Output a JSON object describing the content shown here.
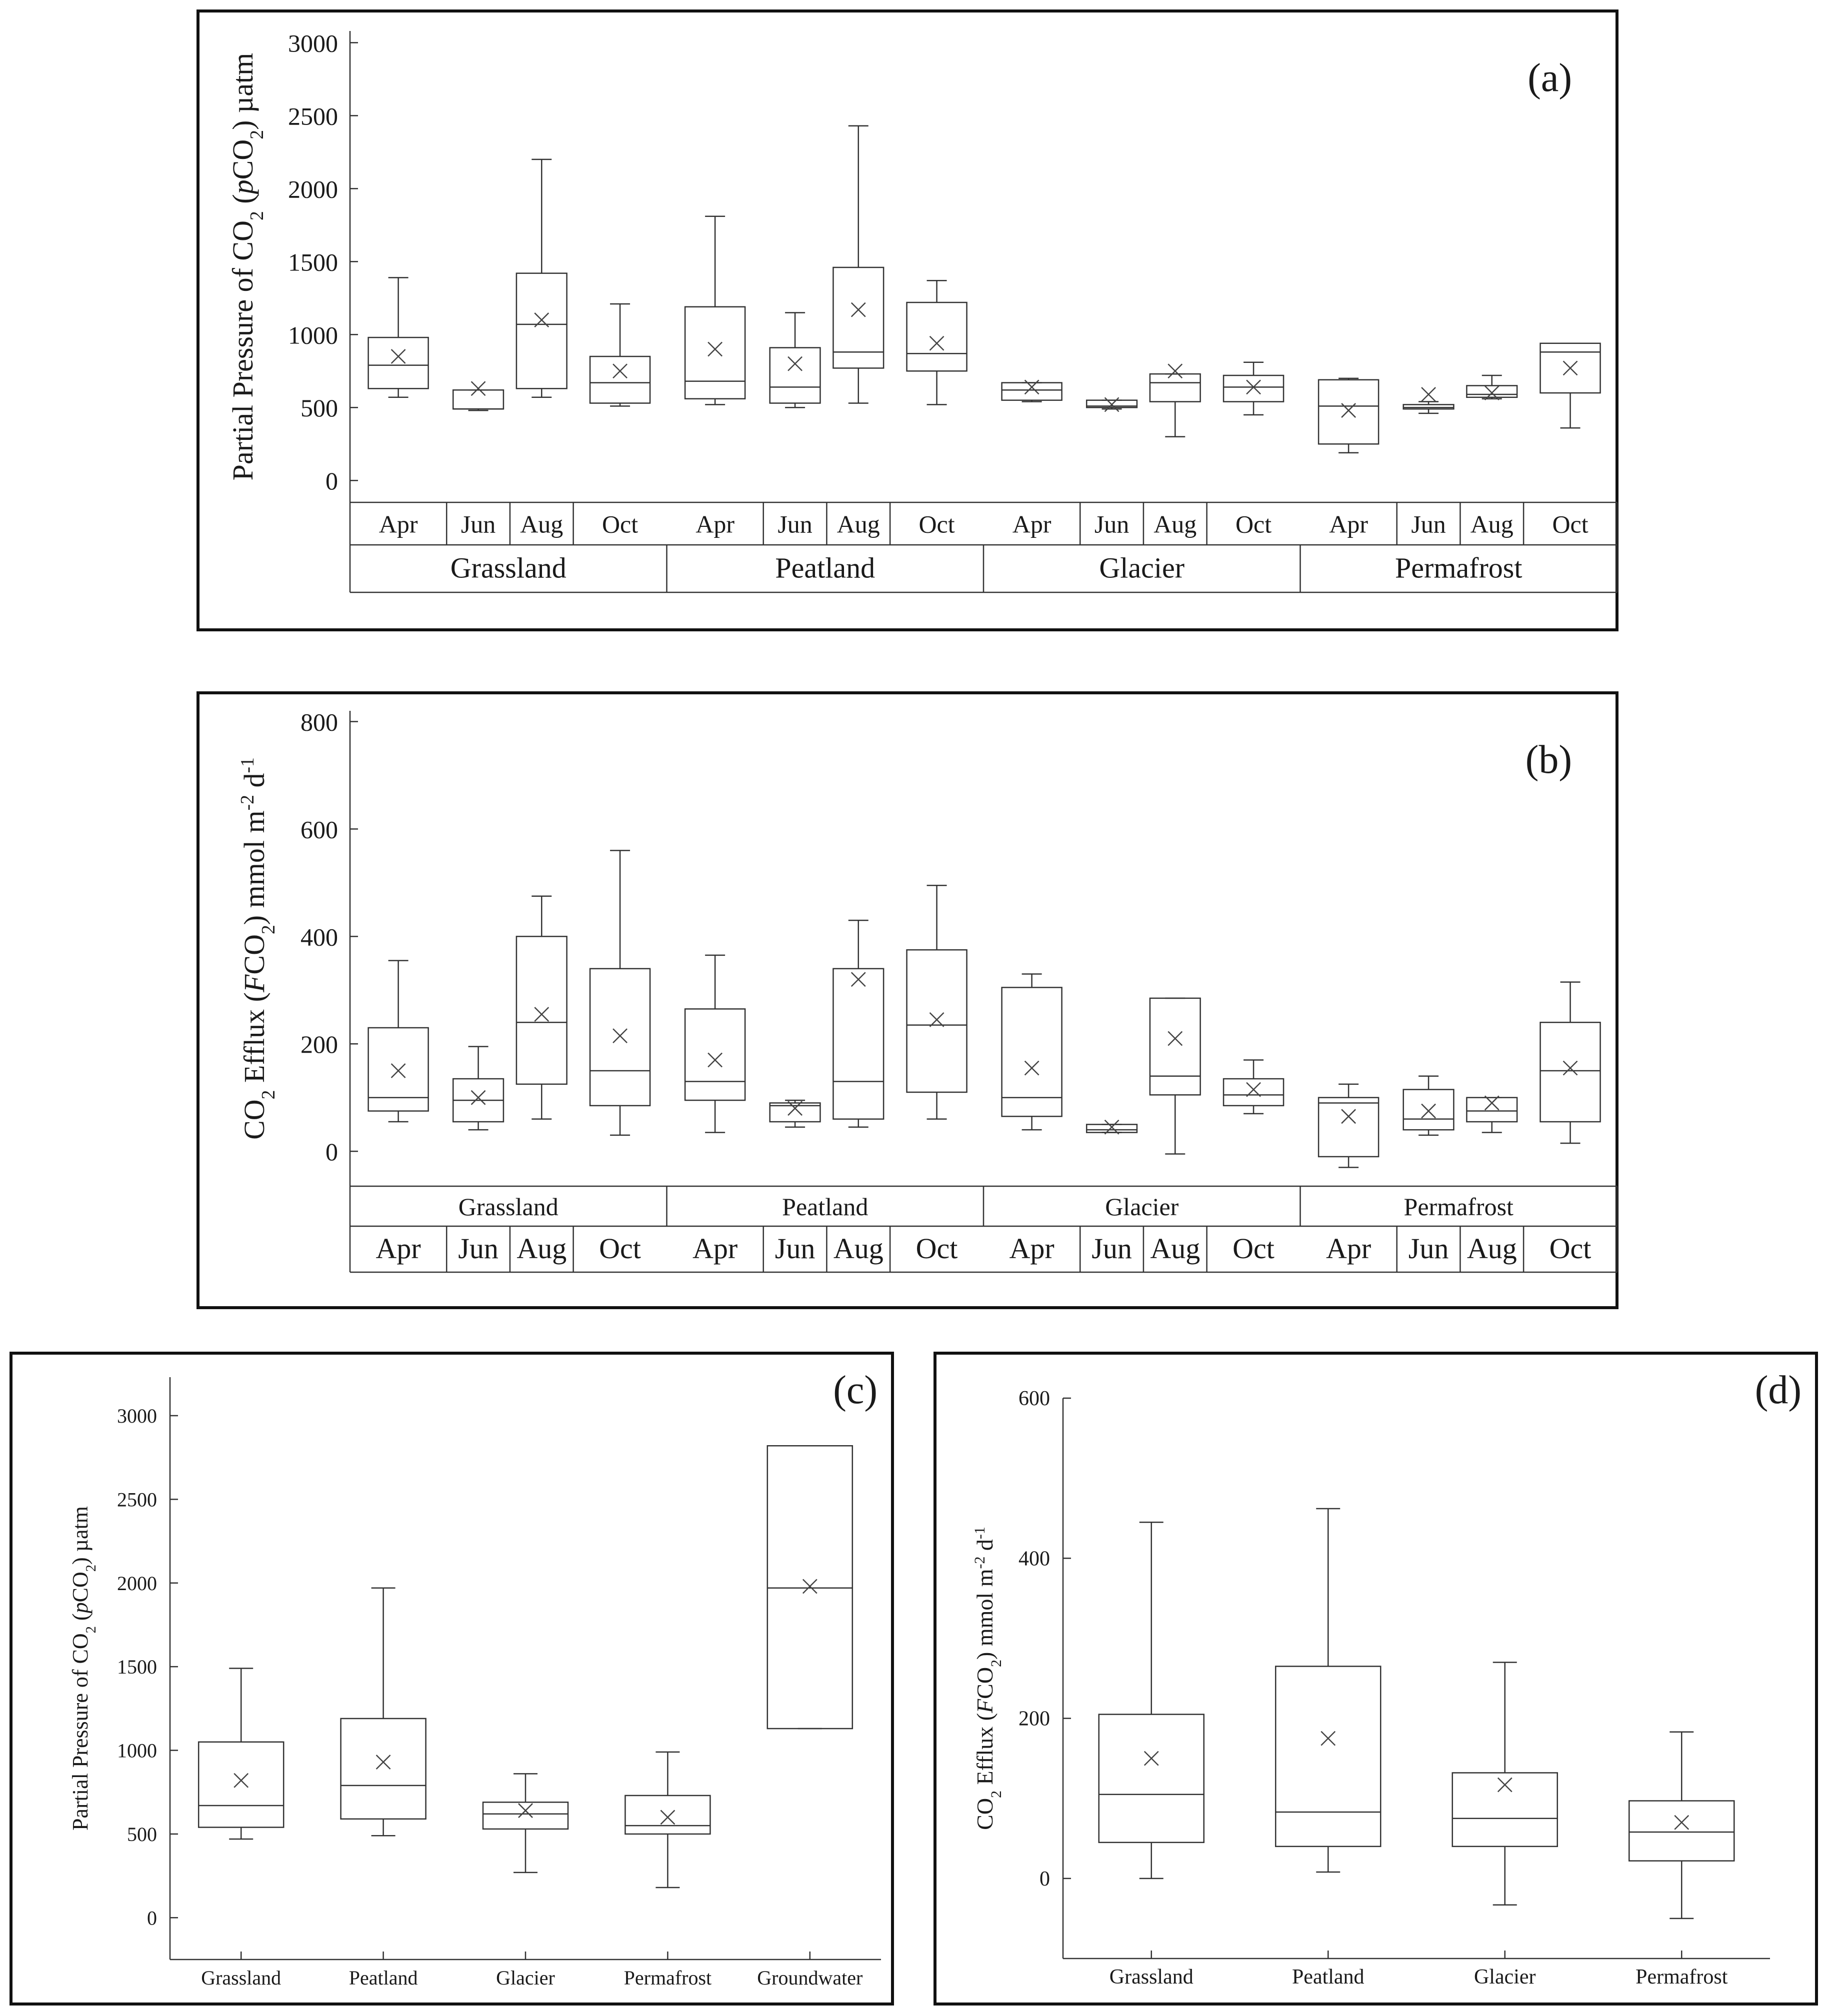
{
  "chart_data": [
    {
      "id": "a",
      "panel_label": "(a)",
      "type": "box",
      "ylabel_parts": [
        "Partial Pressure of CO",
        "2",
        " (",
        "p",
        "CO",
        "2",
        ") µatm"
      ],
      "yticks": [
        "0",
        "500",
        "1000",
        "1500",
        "2000",
        "2500",
        "3000"
      ],
      "ylim": [
        -150,
        3080
      ],
      "row1_is_month": true,
      "groups": [
        "Grassland",
        "Peatland",
        "Glacier",
        "Permafrost"
      ],
      "months": [
        "Apr",
        "Jun",
        "Aug",
        "Oct"
      ],
      "boxes": [
        {
          "group": "Grassland",
          "month": "Apr",
          "min": 570,
          "q1": 630,
          "median": 790,
          "q3": 980,
          "max": 1390,
          "mean": 850
        },
        {
          "group": "Grassland",
          "month": "Jun",
          "min": 480,
          "q1": 490,
          "median": 490,
          "q3": 620,
          "max": 620,
          "mean": 630
        },
        {
          "group": "Grassland",
          "month": "Aug",
          "min": 570,
          "q1": 630,
          "median": 1070,
          "q3": 1420,
          "max": 2200,
          "mean": 1100
        },
        {
          "group": "Grassland",
          "month": "Oct",
          "min": 510,
          "q1": 530,
          "median": 670,
          "q3": 850,
          "max": 1210,
          "mean": 750
        },
        {
          "group": "Peatland",
          "month": "Apr",
          "min": 520,
          "q1": 560,
          "median": 680,
          "q3": 1190,
          "max": 1810,
          "mean": 900
        },
        {
          "group": "Peatland",
          "month": "Jun",
          "min": 500,
          "q1": 530,
          "median": 640,
          "q3": 910,
          "max": 1150,
          "mean": 800
        },
        {
          "group": "Peatland",
          "month": "Aug",
          "min": 530,
          "q1": 770,
          "median": 880,
          "q3": 1460,
          "max": 2430,
          "mean": 1170
        },
        {
          "group": "Peatland",
          "month": "Oct",
          "min": 520,
          "q1": 750,
          "median": 870,
          "q3": 1220,
          "max": 1370,
          "mean": 940
        },
        {
          "group": "Glacier",
          "month": "Apr",
          "min": 540,
          "q1": 550,
          "median": 620,
          "q3": 670,
          "max": 670,
          "mean": 640
        },
        {
          "group": "Glacier",
          "month": "Jun",
          "min": 490,
          "q1": 500,
          "median": 510,
          "q3": 550,
          "max": 550,
          "mean": 520
        },
        {
          "group": "Glacier",
          "month": "Aug",
          "min": 300,
          "q1": 540,
          "median": 670,
          "q3": 730,
          "max": 730,
          "mean": 750
        },
        {
          "group": "Glacier",
          "month": "Oct",
          "min": 450,
          "q1": 540,
          "median": 640,
          "q3": 720,
          "max": 810,
          "mean": 640
        },
        {
          "group": "Permafrost",
          "month": "Apr",
          "min": 190,
          "q1": 250,
          "median": 510,
          "q3": 690,
          "max": 700,
          "mean": 480
        },
        {
          "group": "Permafrost",
          "month": "Jun",
          "min": 460,
          "q1": 490,
          "median": 500,
          "q3": 520,
          "max": 540,
          "mean": 590
        },
        {
          "group": "Permafrost",
          "month": "Aug",
          "min": 560,
          "q1": 570,
          "median": 590,
          "q3": 650,
          "max": 720,
          "mean": 600
        },
        {
          "group": "Permafrost",
          "month": "Oct",
          "min": 360,
          "q1": 600,
          "median": 880,
          "q3": 940,
          "max": 940,
          "mean": 770
        }
      ]
    },
    {
      "id": "b",
      "panel_label": "(b)",
      "type": "box",
      "ylabel_parts": [
        "CO",
        "2",
        " Efflux (",
        "F",
        "CO",
        "2",
        ") mmol m",
        "-2",
        " d",
        "-1"
      ],
      "yticks": [
        "0",
        "200",
        "400",
        "600",
        "800"
      ],
      "ylim": [
        -65,
        820
      ],
      "row1_is_month": false,
      "groups": [
        "Grassland",
        "Peatland",
        "Glacier",
        "Permafrost"
      ],
      "months": [
        "Apr",
        "Jun",
        "Aug",
        "Oct"
      ],
      "boxes": [
        {
          "group": "Grassland",
          "month": "Apr",
          "min": 55,
          "q1": 75,
          "median": 100,
          "q3": 230,
          "max": 355,
          "mean": 150
        },
        {
          "group": "Grassland",
          "month": "Jun",
          "min": 40,
          "q1": 55,
          "median": 95,
          "q3": 135,
          "max": 195,
          "mean": 100
        },
        {
          "group": "Grassland",
          "month": "Aug",
          "min": 60,
          "q1": 125,
          "median": 240,
          "q3": 400,
          "max": 475,
          "mean": 255
        },
        {
          "group": "Grassland",
          "month": "Oct",
          "min": 30,
          "q1": 85,
          "median": 150,
          "q3": 340,
          "max": 560,
          "mean": 215
        },
        {
          "group": "Peatland",
          "month": "Apr",
          "min": 35,
          "q1": 95,
          "median": 130,
          "q3": 265,
          "max": 365,
          "mean": 170
        },
        {
          "group": "Peatland",
          "month": "Jun",
          "min": 45,
          "q1": 55,
          "median": 85,
          "q3": 90,
          "max": 95,
          "mean": 80
        },
        {
          "group": "Peatland",
          "month": "Aug",
          "min": 45,
          "q1": 60,
          "median": 130,
          "q3": 340,
          "max": 430,
          "mean": 320
        },
        {
          "group": "Peatland",
          "month": "Oct",
          "min": 60,
          "q1": 110,
          "median": 235,
          "q3": 375,
          "max": 495,
          "mean": 245
        },
        {
          "group": "Glacier",
          "month": "Apr",
          "min": 40,
          "q1": 65,
          "median": 100,
          "q3": 305,
          "max": 330,
          "mean": 155
        },
        {
          "group": "Glacier",
          "month": "Jun",
          "min": 35,
          "q1": 35,
          "median": 40,
          "q3": 50,
          "max": 50,
          "mean": 45
        },
        {
          "group": "Glacier",
          "month": "Aug",
          "min": -5,
          "q1": 105,
          "median": 140,
          "q3": 285,
          "max": 285,
          "mean": 210
        },
        {
          "group": "Glacier",
          "month": "Oct",
          "min": 70,
          "q1": 85,
          "median": 105,
          "q3": 135,
          "max": 170,
          "mean": 115
        },
        {
          "group": "Permafrost",
          "month": "Apr",
          "min": -30,
          "q1": -10,
          "median": 90,
          "q3": 100,
          "max": 125,
          "mean": 65
        },
        {
          "group": "Permafrost",
          "month": "Jun",
          "min": 30,
          "q1": 40,
          "median": 60,
          "q3": 115,
          "max": 140,
          "mean": 75
        },
        {
          "group": "Permafrost",
          "month": "Aug",
          "min": 35,
          "q1": 55,
          "median": 75,
          "q3": 100,
          "max": 100,
          "mean": 90
        },
        {
          "group": "Permafrost",
          "month": "Oct",
          "min": 15,
          "q1": 55,
          "median": 150,
          "q3": 240,
          "max": 315,
          "mean": 155
        }
      ]
    },
    {
      "id": "c",
      "panel_label": "(c)",
      "type": "box",
      "ylabel_parts": [
        "Partial Pressure of CO",
        "2",
        " (",
        "p",
        "CO",
        "2",
        ") µatm"
      ],
      "yticks": [
        "0",
        "500",
        "1000",
        "1500",
        "2000",
        "2500",
        "3000"
      ],
      "ylim": [
        -250,
        3230
      ],
      "categories": [
        "Grassland",
        "Peatland",
        "Glacier",
        "Permafrost",
        "Groundwater"
      ],
      "boxes": [
        {
          "category": "Grassland",
          "min": 470,
          "q1": 540,
          "median": 670,
          "q3": 1050,
          "max": 1490,
          "mean": 820
        },
        {
          "category": "Peatland",
          "min": 490,
          "q1": 590,
          "median": 790,
          "q3": 1190,
          "max": 1970,
          "mean": 930
        },
        {
          "category": "Glacier",
          "min": 270,
          "q1": 530,
          "median": 620,
          "q3": 690,
          "max": 860,
          "mean": 640
        },
        {
          "category": "Permafrost",
          "min": 180,
          "q1": 500,
          "median": 550,
          "q3": 730,
          "max": 990,
          "mean": 600
        },
        {
          "category": "Groundwater",
          "min": 1130,
          "q1": 1130,
          "median": 1970,
          "q3": 2820,
          "max": 2820,
          "mean": 1980
        }
      ]
    },
    {
      "id": "d",
      "panel_label": "(d)",
      "type": "box",
      "ylabel_parts": [
        "CO",
        "2",
        " Efflux (",
        "F",
        "CO",
        "2",
        ") mmol m",
        "-2",
        " d",
        "-1"
      ],
      "yticks": [
        "0",
        "200",
        "400",
        "600"
      ],
      "ylim": [
        -100,
        600
      ],
      "categories": [
        "Grassland",
        "Peatland",
        "Glacier",
        "Permafrost"
      ],
      "boxes": [
        {
          "category": "Grassland",
          "min": 0,
          "q1": 45,
          "median": 105,
          "q3": 205,
          "max": 445,
          "mean": 150
        },
        {
          "category": "Peatland",
          "min": 8,
          "q1": 40,
          "median": 83,
          "q3": 265,
          "max": 462,
          "mean": 175
        },
        {
          "category": "Glacier",
          "min": -33,
          "q1": 40,
          "median": 75,
          "q3": 132,
          "max": 270,
          "mean": 117
        },
        {
          "category": "Permafrost",
          "min": -50,
          "q1": 22,
          "median": 58,
          "q3": 97,
          "max": 183,
          "mean": 70
        }
      ]
    }
  ]
}
